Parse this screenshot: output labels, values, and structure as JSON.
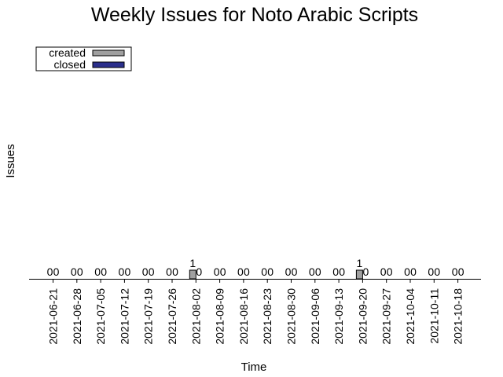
{
  "chart_data": {
    "type": "bar",
    "title": "Weekly Issues for Noto Arabic Scripts",
    "xlabel": "Time",
    "ylabel": "Issues",
    "ylim": [
      0,
      10
    ],
    "grid": false,
    "legend_position": "top-left",
    "categories": [
      "2021-06-21",
      "2021-06-28",
      "2021-07-05",
      "2021-07-12",
      "2021-07-19",
      "2021-07-26",
      "2021-08-02",
      "2021-08-09",
      "2021-08-16",
      "2021-08-23",
      "2021-08-30",
      "2021-09-06",
      "2021-09-13",
      "2021-09-20",
      "2021-09-27",
      "2021-10-04",
      "2021-10-11",
      "2021-10-18"
    ],
    "series": [
      {
        "name": "created",
        "color": "#a0a0a0",
        "values": [
          0,
          0,
          0,
          0,
          0,
          0,
          1,
          0,
          0,
          0,
          0,
          0,
          0,
          1,
          0,
          0,
          0,
          0
        ]
      },
      {
        "name": "closed",
        "color": "#2b2f8c",
        "values": [
          0,
          0,
          0,
          0,
          0,
          0,
          0,
          0,
          0,
          0,
          0,
          0,
          0,
          0,
          0,
          0,
          0,
          0
        ]
      }
    ]
  }
}
